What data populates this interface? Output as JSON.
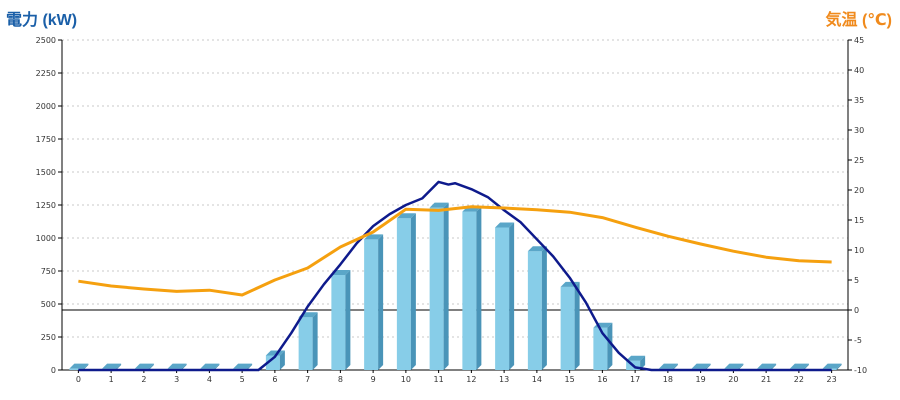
{
  "chart_data": {
    "type": "bar",
    "categories": [
      "0",
      "1",
      "2",
      "3",
      "4",
      "5",
      "6",
      "7",
      "8",
      "9",
      "10",
      "11",
      "12",
      "13",
      "14",
      "15",
      "16",
      "17",
      "18",
      "19",
      "20",
      "21",
      "22",
      "23"
    ],
    "y_left": {
      "label": "電力 (kW)",
      "min": 0,
      "max": 2500,
      "ticks": [
        "0",
        "250",
        "500",
        "750",
        "1000",
        "1250",
        "1500",
        "1750",
        "2000",
        "2250",
        "2500"
      ]
    },
    "y_right": {
      "label": "気温 (℃)",
      "min": -10,
      "max": 45,
      "ticks": [
        "-10",
        "-5",
        "0",
        "5",
        "10",
        "15",
        "20",
        "25",
        "30",
        "35",
        "40",
        "45"
      ]
    },
    "series": [
      {
        "type": "bar",
        "axis": "left",
        "color": "#87cde8",
        "values": [
          10,
          10,
          10,
          10,
          10,
          10,
          110,
          400,
          720,
          990,
          1150,
          1230,
          1200,
          1080,
          900,
          630,
          320,
          70,
          10,
          10,
          10,
          10,
          10,
          10
        ]
      },
      {
        "type": "line",
        "axis": "left",
        "color": "#0e1a8c",
        "x": [
          0,
          1,
          2,
          3,
          4,
          5,
          5.5,
          6,
          6.5,
          7,
          7.5,
          8,
          8.5,
          9,
          9.5,
          10,
          10.5,
          11,
          11.3,
          11.5,
          12,
          12.5,
          13,
          13.5,
          14,
          14.5,
          15,
          15.5,
          16,
          16.5,
          17,
          17.5,
          18,
          19,
          20,
          21,
          22,
          23
        ],
        "values": [
          0,
          0,
          0,
          0,
          0,
          0,
          0,
          100,
          280,
          480,
          650,
          800,
          960,
          1090,
          1180,
          1250,
          1300,
          1425,
          1405,
          1415,
          1370,
          1310,
          1210,
          1120,
          990,
          860,
          700,
          510,
          280,
          130,
          20,
          0,
          0,
          0,
          0,
          0,
          0,
          0
        ]
      },
      {
        "type": "line",
        "axis": "right",
        "color": "#f5a00f",
        "values": [
          4.8,
          4,
          3.5,
          3.1,
          3.3,
          2.5,
          5,
          7,
          10.5,
          13,
          16.8,
          16.6,
          17.2,
          17,
          16.7,
          16.3,
          15.4,
          13.8,
          12.3,
          11,
          9.8,
          8.8,
          8.2,
          8
        ]
      }
    ],
    "grid": true
  }
}
